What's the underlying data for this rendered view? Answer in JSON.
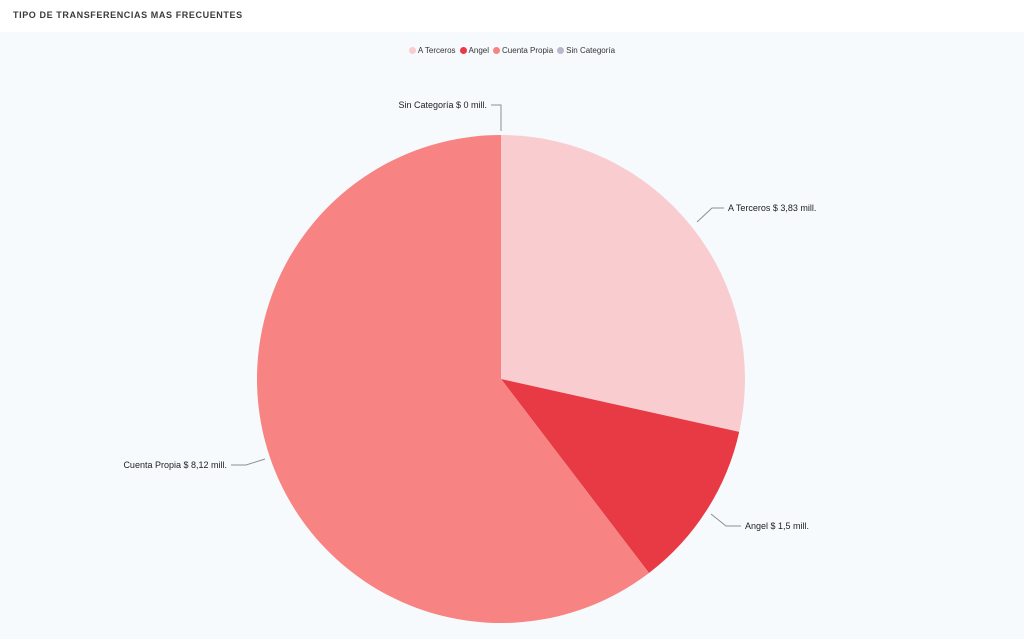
{
  "header": {
    "title": "TIPO DE TRANSFERENCIAS MAS FRECUENTES"
  },
  "chart_data": {
    "type": "pie",
    "categories": [
      "A Terceros",
      "Angel",
      "Cuenta Propia",
      "Sin Categoría"
    ],
    "values": [
      3.83,
      1.5,
      8.12,
      0
    ],
    "unit": "mill.",
    "colors": [
      "#f9cdcf",
      "#e83a45",
      "#f78482",
      "#b9b6cd"
    ],
    "data_labels": [
      "A Terceros $ 3,83 mill.",
      "Angel $ 1,5 mill.",
      "Cuenta Propia $ 8,12 mill.",
      "Sin Categoría $ 0 mill."
    ],
    "legend": "top-center"
  }
}
